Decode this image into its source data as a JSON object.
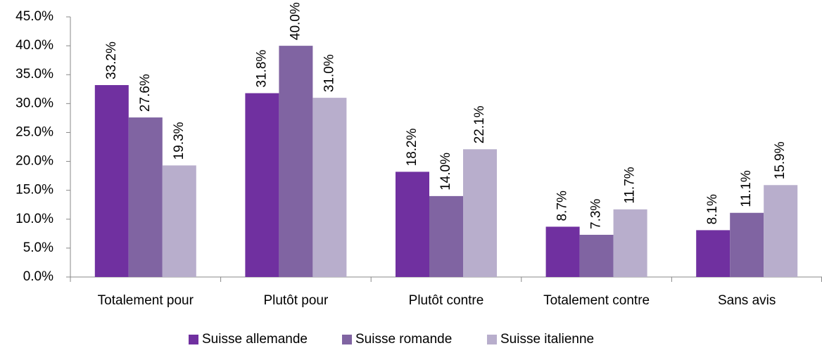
{
  "chart_data": {
    "type": "bar",
    "categories": [
      "Totalement pour",
      "Plutôt pour",
      "Plutôt contre",
      "Totalement contre",
      "Sans avis"
    ],
    "series": [
      {
        "name": "Suisse allemande",
        "color": "#7030a0",
        "values": [
          33.2,
          31.8,
          18.2,
          8.7,
          8.1
        ],
        "value_labels": [
          "33.2%",
          "31.8%",
          "18.2%",
          "8.7%",
          "8.1%"
        ]
      },
      {
        "name": "Suisse romande",
        "color": "#8064a2",
        "values": [
          27.6,
          40.0,
          14.0,
          7.3,
          11.1
        ],
        "value_labels": [
          "27.6%",
          "40.0%",
          "14.0%",
          "7.3%",
          "11.1%"
        ]
      },
      {
        "name": "Suisse italienne",
        "color": "#b8aecc",
        "values": [
          19.3,
          31.0,
          22.1,
          11.7,
          15.9
        ],
        "value_labels": [
          "19.3%",
          "31.0%",
          "22.1%",
          "11.7%",
          "15.9%"
        ]
      }
    ],
    "ylim": [
      0,
      45
    ],
    "yticks": [
      {
        "value": 0,
        "label": "0.0%"
      },
      {
        "value": 5,
        "label": "5.0%"
      },
      {
        "value": 10,
        "label": "10.0%"
      },
      {
        "value": 15,
        "label": "15.0%"
      },
      {
        "value": 20,
        "label": "20.0%"
      },
      {
        "value": 25,
        "label": "25.0%"
      },
      {
        "value": 30,
        "label": "30.0%"
      },
      {
        "value": 35,
        "label": "35.0%"
      },
      {
        "value": 40,
        "label": "40.0%"
      },
      {
        "value": 45,
        "label": "45.0%"
      }
    ],
    "grid": false,
    "legend": "bottom"
  }
}
